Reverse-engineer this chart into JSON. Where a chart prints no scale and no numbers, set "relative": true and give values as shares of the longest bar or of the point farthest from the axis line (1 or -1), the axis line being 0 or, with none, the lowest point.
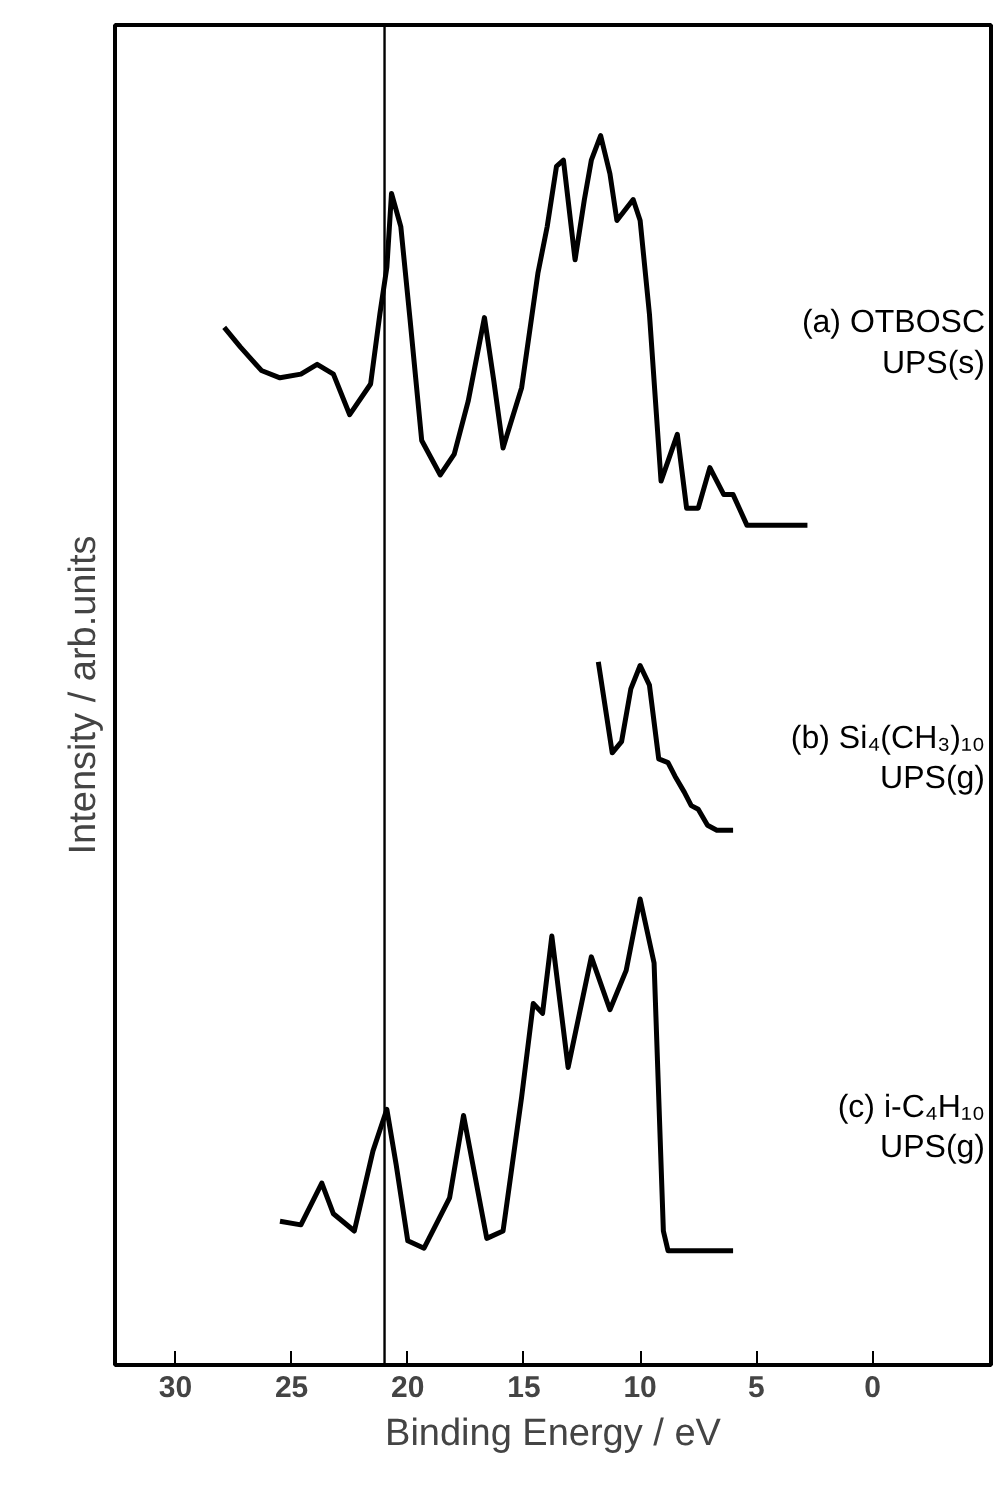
{
  "chart_data": {
    "type": "line",
    "relative": true,
    "xlabel": "Binding Energy / eV",
    "ylabel": "Intensity / arb.units",
    "xlim": [
      32.6,
      -5.1
    ],
    "xticks": [
      30,
      25,
      20,
      15,
      10,
      5,
      0
    ],
    "grid": false,
    "marker": "none",
    "line_style": "solid",
    "ref_lines": [
      {
        "axis": "x",
        "value": 21.0,
        "color": "#000000"
      }
    ],
    "series": [
      {
        "name": "(a) OTBOSC\nUPS(s)",
        "color": "#000000",
        "x": [
          27.9,
          27.2,
          26.3,
          25.5,
          24.6,
          23.9,
          23.2,
          22.5,
          21.6,
          21.2,
          20.9,
          20.7,
          20.3,
          19.9,
          19.4,
          18.6,
          18.0,
          17.4,
          16.7,
          16.3,
          15.9,
          15.1,
          14.4,
          14.0,
          13.6,
          13.3,
          12.8,
          12.4,
          12.1,
          11.7,
          11.3,
          11.0,
          10.3,
          10.0,
          9.6,
          9.1,
          8.4,
          8.0,
          7.5,
          7.0,
          6.4,
          6.0,
          5.4,
          2.8
        ],
        "values": [
          0.844,
          0.828,
          0.809,
          0.803,
          0.806,
          0.814,
          0.806,
          0.773,
          0.798,
          0.855,
          0.893,
          0.953,
          0.926,
          0.85,
          0.752,
          0.724,
          0.741,
          0.784,
          0.852,
          0.801,
          0.746,
          0.795,
          0.888,
          0.926,
          0.975,
          0.98,
          0.899,
          0.948,
          0.98,
          1.0,
          0.969,
          0.931,
          0.948,
          0.931,
          0.855,
          0.719,
          0.757,
          0.697,
          0.697,
          0.73,
          0.708,
          0.708,
          0.683,
          0.683
        ]
      },
      {
        "name": "(b) Si₄(CH₃)₁₀\nUPS(g)",
        "color": "#000000",
        "x": [
          11.8,
          11.2,
          10.8,
          10.4,
          10.0,
          9.6,
          9.2,
          8.8,
          8.5,
          8.1,
          7.8,
          7.5,
          7.1,
          6.7,
          6.0
        ],
        "values": [
          0.572,
          0.498,
          0.507,
          0.55,
          0.569,
          0.553,
          0.493,
          0.49,
          0.479,
          0.466,
          0.455,
          0.452,
          0.439,
          0.435,
          0.435
        ]
      },
      {
        "name": "(c) i-C₄H₁₀\nUPS(g)",
        "color": "#000000",
        "x": [
          25.5,
          24.6,
          23.7,
          23.2,
          22.3,
          21.5,
          20.9,
          20.5,
          20.0,
          19.3,
          18.2,
          17.6,
          17.2,
          16.6,
          15.9,
          15.1,
          14.6,
          14.2,
          13.8,
          13.1,
          12.1,
          11.3,
          10.6,
          10.0,
          9.4,
          9.0,
          8.8,
          6.0
        ],
        "values": [
          0.117,
          0.114,
          0.148,
          0.123,
          0.109,
          0.174,
          0.208,
          0.163,
          0.101,
          0.095,
          0.136,
          0.203,
          0.163,
          0.103,
          0.109,
          0.218,
          0.294,
          0.286,
          0.349,
          0.242,
          0.332,
          0.289,
          0.321,
          0.379,
          0.327,
          0.109,
          0.093,
          0.093
        ]
      }
    ]
  }
}
